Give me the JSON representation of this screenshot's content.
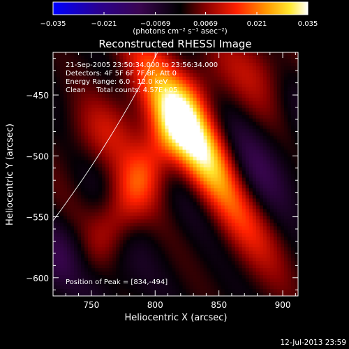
{
  "chart_data": {
    "type": "heatmap",
    "title": "Reconstructed RHESSI Image",
    "xlabel": "Heliocentric X (arcsec)",
    "ylabel": "Heliocentric Y (arcsec)",
    "xlim": [
      720,
      912
    ],
    "ylim": [
      -615,
      -415
    ],
    "xticks": [
      750,
      800,
      850,
      900
    ],
    "yticks": [
      -450,
      -500,
      -550,
      -600
    ],
    "colorbar": {
      "range": [
        -0.035,
        0.035
      ],
      "ticks": [
        -0.035,
        -0.021,
        -0.0069,
        0.0069,
        0.021,
        0.035
      ],
      "tick_labels": [
        "−0.035",
        "−0.021",
        "−0.0069",
        "0.0069",
        "0.021",
        "0.035"
      ],
      "units": "(photons cm⁻² s⁻¹ asec⁻²)"
    },
    "peak": {
      "x": 834,
      "y": -494,
      "value": 0.035
    },
    "info_lines": [
      "21-Sep-2005 23:50:34.000 to 23:56:34.000",
      "Detectors: 4F 5F 6F 7F 8F, Att 0",
      "Energy Range: 6.0 - 12.0 keV",
      "Clean     Total counts: 4.57E+05"
    ],
    "peak_label": "Position of Peak = [834,-494]",
    "timestamp": "12-Jul-2013 23:59",
    "grid": false,
    "legend": "none",
    "colormap": [
      "#0000ff",
      "#000000",
      "#ff0000",
      "#ffff00",
      "#ffffff"
    ]
  }
}
